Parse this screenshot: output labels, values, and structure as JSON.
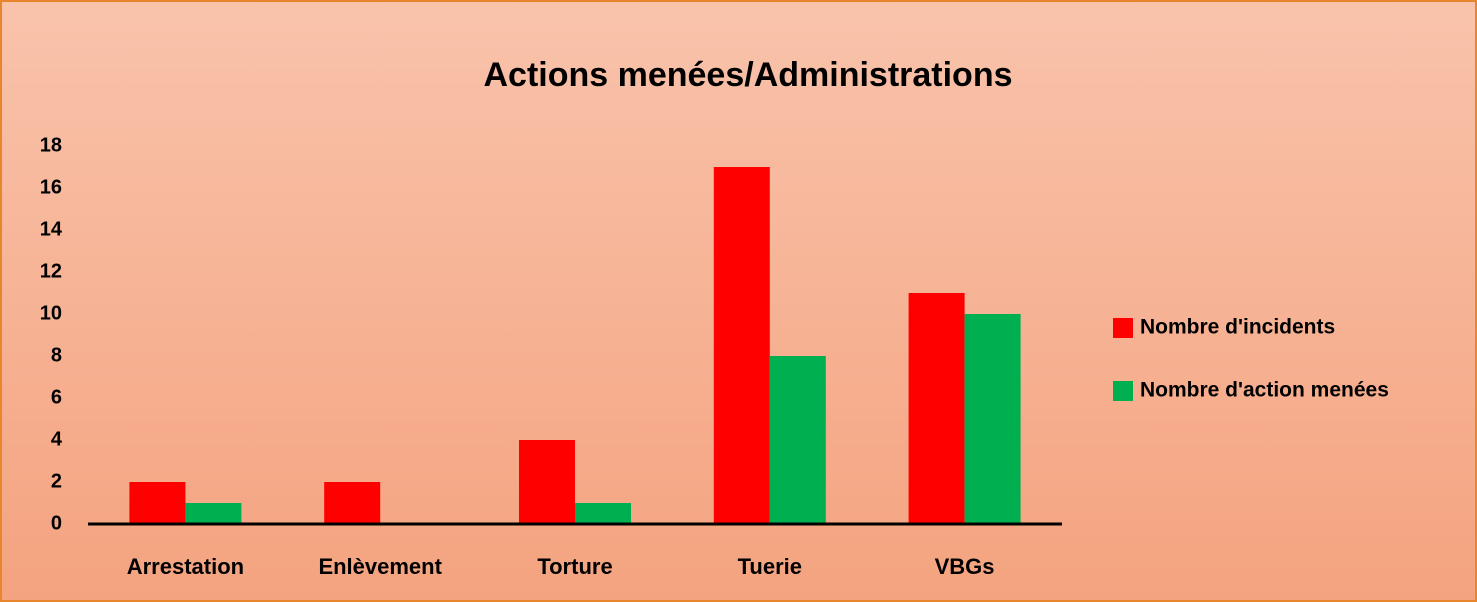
{
  "chart_data": {
    "type": "bar",
    "title": "Actions menées/Administrations",
    "categories": [
      "Arrestation",
      "Enlèvement",
      "Torture",
      "Tuerie",
      "VBGs"
    ],
    "series": [
      {
        "name": "Nombre d'incidents",
        "color": "#ff0000",
        "values": [
          2,
          2,
          4,
          17,
          11
        ]
      },
      {
        "name": "Nombre d'action menées",
        "color": "#00b050",
        "values": [
          1,
          0,
          1,
          8,
          10
        ]
      }
    ],
    "ylim": [
      0,
      18
    ],
    "yticks": [
      0,
      2,
      4,
      6,
      8,
      10,
      12,
      14,
      16,
      18
    ],
    "grid": false,
    "legend": "right"
  }
}
